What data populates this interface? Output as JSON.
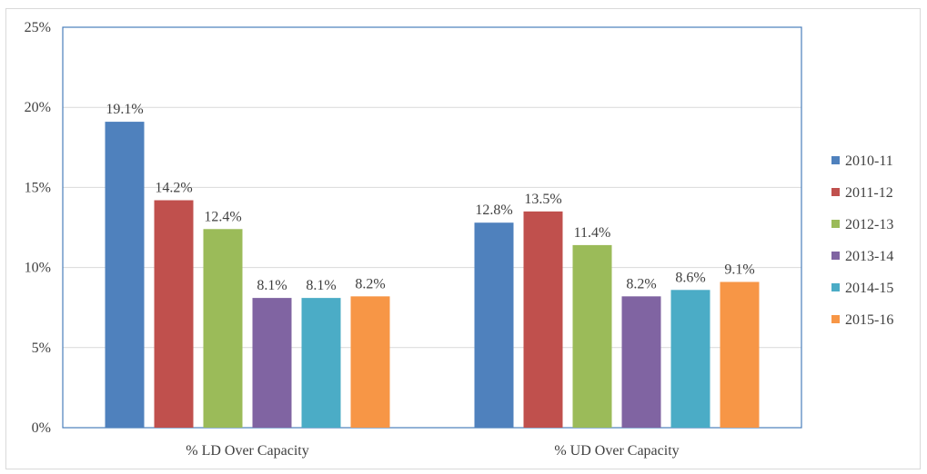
{
  "chart_data": {
    "type": "bar",
    "categories": [
      "% LD Over Capacity",
      "% UD Over Capacity"
    ],
    "series": [
      {
        "name": "2010-11",
        "values": [
          19.1,
          12.8
        ],
        "color": "#4f81bd"
      },
      {
        "name": "2011-12",
        "values": [
          14.2,
          13.5
        ],
        "color": "#c0504d"
      },
      {
        "name": "2012-13",
        "values": [
          12.4,
          11.4
        ],
        "color": "#9bbb59"
      },
      {
        "name": "2013-14",
        "values": [
          8.1,
          8.2
        ],
        "color": "#8064a2"
      },
      {
        "name": "2014-15",
        "values": [
          8.1,
          8.6
        ],
        "color": "#4bacc6"
      },
      {
        "name": "2015-16",
        "values": [
          8.2,
          9.1
        ],
        "color": "#f79646"
      }
    ],
    "data_labels": [
      [
        "19.1%",
        "12.8%"
      ],
      [
        "14.2%",
        "13.5%"
      ],
      [
        "12.4%",
        "11.4%"
      ],
      [
        "8.1%",
        "8.2%"
      ],
      [
        "8.1%",
        "8.6%"
      ],
      [
        "8.2%",
        "9.1%"
      ]
    ],
    "yticks": [
      "0%",
      "5%",
      "10%",
      "15%",
      "20%",
      "25%"
    ],
    "ylim": [
      0,
      25
    ],
    "ytick_step": 5,
    "grid": true,
    "legend_position": "right",
    "title": "",
    "xlabel": "",
    "ylabel": ""
  }
}
